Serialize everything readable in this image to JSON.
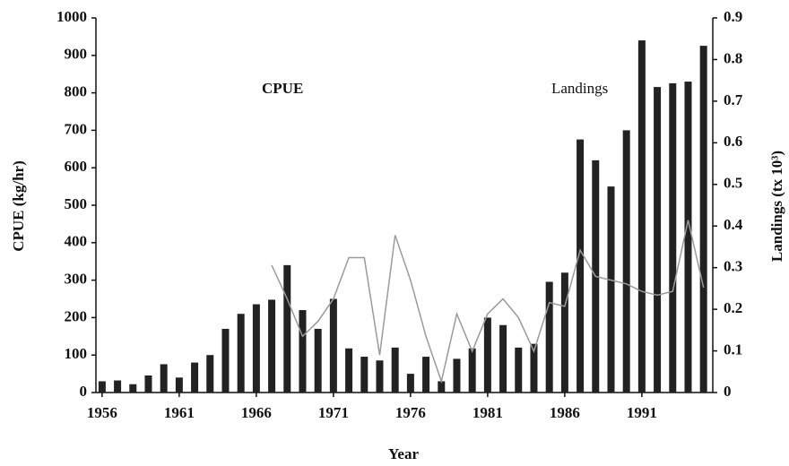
{
  "chart_data": {
    "type": "combo",
    "xlabel": "Year",
    "ylabel": "CPUE (kg/hr)",
    "y2label": "Landings (tx 10³)",
    "x": [
      1956,
      1957,
      1958,
      1959,
      1960,
      1961,
      1962,
      1963,
      1964,
      1965,
      1966,
      1967,
      1968,
      1969,
      1970,
      1971,
      1972,
      1973,
      1974,
      1975,
      1976,
      1977,
      1978,
      1979,
      1980,
      1981,
      1982,
      1983,
      1984,
      1985,
      1986,
      1987,
      1988,
      1989,
      1990,
      1991,
      1992,
      1993,
      1994,
      1995
    ],
    "xlim": [
      1955.6,
      1995.6
    ],
    "xticks": [
      1956,
      1961,
      1966,
      1971,
      1976,
      1981,
      1986,
      1991
    ],
    "ylim": [
      0,
      1000
    ],
    "yticks": [
      0,
      100,
      200,
      300,
      400,
      500,
      600,
      700,
      800,
      900,
      1000
    ],
    "y2lim": [
      0,
      0.9
    ],
    "y2ticks": [
      0,
      0.1,
      0.2,
      0.3,
      0.4,
      0.5,
      0.6,
      0.7,
      0.8,
      0.9
    ],
    "series": [
      {
        "name": "Landings",
        "type": "bar",
        "axis": "y2",
        "color": "#222222",
        "values": [
          0.027,
          0.029,
          0.02,
          0.041,
          0.068,
          0.036,
          0.072,
          0.09,
          0.153,
          0.189,
          0.212,
          0.223,
          0.306,
          0.198,
          0.153,
          0.225,
          0.106,
          0.086,
          0.077,
          0.108,
          0.045,
          0.086,
          0.027,
          0.081,
          0.106,
          0.18,
          0.162,
          0.108,
          0.117,
          0.266,
          0.288,
          0.608,
          0.558,
          0.495,
          0.63,
          0.846,
          0.734,
          0.743,
          0.747,
          0.833
        ]
      },
      {
        "name": "CPUE",
        "type": "line",
        "axis": "y",
        "color": "#9a9a9a",
        "values": [
          null,
          null,
          null,
          null,
          null,
          null,
          null,
          null,
          null,
          null,
          null,
          340,
          250,
          150,
          190,
          250,
          360,
          360,
          100,
          420,
          300,
          150,
          30,
          210,
          110,
          210,
          250,
          200,
          110,
          240,
          230,
          380,
          310,
          300,
          290,
          270,
          260,
          270,
          460,
          280
        ]
      }
    ]
  }
}
